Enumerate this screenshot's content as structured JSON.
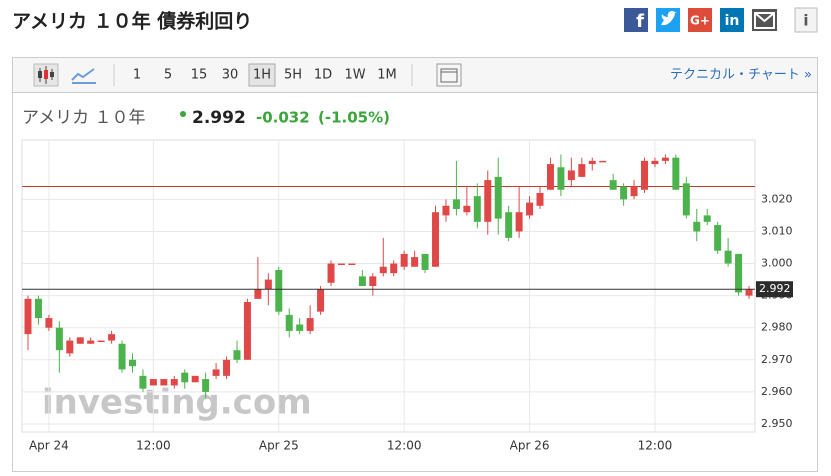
{
  "page": {
    "title": "アメリカ １０年 債券利回り",
    "share": [
      "f",
      "G+",
      "in",
      "i"
    ],
    "intervals": [
      "1",
      "5",
      "15",
      "30",
      "1H",
      "5H",
      "1D",
      "1W",
      "1M"
    ],
    "active_interval_index": 4,
    "technical_link": "テクニカル・チャート »",
    "instrument": "アメリカ １０年",
    "price": "2.992",
    "change": "-0.032",
    "change_percent": "(-1.05%)",
    "watermark": "investing.com"
  },
  "chart_data": {
    "type": "candlestick",
    "categories": [
      null,
      null,
      "Apr 24",
      null,
      null,
      null,
      null,
      null,
      null,
      null,
      null,
      null,
      "12:00",
      null,
      null,
      null,
      null,
      null,
      null,
      null,
      null,
      null,
      null,
      null,
      "Apr 25",
      null,
      null,
      null,
      null,
      null,
      null,
      null,
      null,
      null,
      null,
      null,
      "12:00",
      null,
      null,
      null,
      null,
      null,
      null,
      null,
      null,
      null,
      null,
      null,
      "Apr 26",
      null,
      null,
      null,
      null,
      null,
      null,
      null,
      null,
      null,
      null,
      null,
      "12:00",
      null,
      null,
      null,
      null,
      null,
      null,
      null,
      null,
      null
    ],
    "series": [
      {
        "open": [
          2.978,
          2.989,
          2.98,
          2.98,
          2.972,
          2.975,
          2.975,
          2.976,
          2.976,
          2.975,
          2.97,
          2.965,
          2.962,
          2.962,
          2.962,
          2.966,
          2.963,
          2.964,
          2.965,
          2.965,
          2.973,
          2.97,
          2.989,
          2.992,
          2.998,
          2.984,
          2.981,
          2.979,
          2.985,
          2.994,
          3.0,
          3.0,
          2.996,
          2.993,
          2.997,
          2.997,
          2.999,
          2.999,
          3.003,
          2.999,
          3.015,
          3.02,
          3.016,
          3.021,
          3.013,
          3.027,
          3.016,
          3.01,
          3.015,
          3.018,
          3.023,
          3.03,
          3.026,
          3.027,
          3.031,
          3.032,
          3.026,
          3.024,
          3.021,
          3.023,
          3.031,
          3.032,
          3.033,
          3.025,
          3.013,
          3.015,
          3.012,
          3.004,
          3.003,
          2.99
        ],
        "high": [
          2.99,
          2.99,
          2.984,
          2.982,
          2.977,
          2.977,
          2.977,
          2.976,
          2.979,
          2.976,
          2.972,
          2.967,
          2.964,
          2.964,
          2.965,
          2.967,
          2.965,
          2.966,
          2.969,
          2.971,
          2.976,
          2.989,
          3.002,
          2.997,
          2.999,
          2.986,
          2.983,
          2.987,
          2.993,
          3.001,
          3.0,
          3.0,
          2.998,
          2.997,
          3.008,
          3.001,
          3.004,
          3.004,
          3.003,
          3.018,
          3.02,
          3.032,
          3.024,
          3.025,
          3.029,
          3.033,
          3.018,
          3.024,
          3.021,
          3.024,
          3.033,
          3.034,
          3.033,
          3.033,
          3.033,
          3.032,
          3.028,
          3.025,
          3.026,
          3.033,
          3.033,
          3.034,
          3.034,
          3.027,
          3.017,
          3.017,
          3.013,
          3.008,
          3.003,
          2.993
        ],
        "low": [
          2.973,
          2.981,
          2.979,
          2.966,
          2.971,
          2.975,
          2.975,
          2.976,
          2.975,
          2.966,
          2.966,
          2.96,
          2.962,
          2.962,
          2.961,
          2.961,
          2.963,
          2.958,
          2.964,
          2.964,
          2.969,
          2.97,
          2.989,
          2.987,
          2.984,
          2.977,
          2.978,
          2.978,
          2.984,
          2.993,
          3.0,
          3.0,
          2.993,
          2.99,
          2.996,
          2.996,
          2.998,
          2.999,
          2.997,
          2.999,
          3.013,
          3.015,
          3.015,
          3.011,
          3.009,
          3.009,
          3.007,
          3.008,
          3.014,
          3.017,
          3.023,
          3.021,
          3.024,
          3.027,
          3.029,
          3.032,
          3.023,
          3.018,
          3.02,
          3.022,
          3.03,
          3.031,
          3.023,
          3.014,
          3.007,
          3.012,
          3.003,
          2.999,
          2.99,
          2.989
        ],
        "close": [
          2.989,
          2.983,
          2.983,
          2.973,
          2.976,
          2.977,
          2.976,
          2.976,
          2.978,
          2.967,
          2.968,
          2.961,
          2.964,
          2.964,
          2.964,
          2.963,
          2.965,
          2.96,
          2.967,
          2.97,
          2.97,
          2.988,
          2.992,
          2.995,
          2.985,
          2.979,
          2.979,
          2.983,
          2.992,
          3.0,
          3.0,
          3.0,
          2.993,
          2.996,
          2.999,
          3.0,
          3.003,
          3.002,
          2.998,
          3.016,
          3.018,
          3.017,
          3.018,
          3.013,
          3.026,
          3.014,
          3.008,
          3.016,
          3.019,
          3.022,
          3.031,
          3.023,
          3.029,
          3.031,
          3.032,
          3.032,
          3.023,
          3.02,
          3.024,
          3.032,
          3.032,
          3.033,
          3.023,
          3.015,
          3.01,
          3.013,
          3.004,
          3.0,
          2.991,
          2.992
        ]
      }
    ],
    "up_color": "#e04848",
    "down_color": "#4cb34c",
    "ylim": [
      2.9475,
      3.0385
    ],
    "yticks": [
      {
        "value": 2.95,
        "label": "2.950"
      },
      {
        "value": 2.96,
        "label": "2.960"
      },
      {
        "value": 2.97,
        "label": "2.970"
      },
      {
        "value": 2.98,
        "label": "2.980"
      },
      {
        "value": 2.99,
        "label": "2.990"
      },
      {
        "value": 3.0,
        "label": "3.000"
      },
      {
        "value": 3.01,
        "label": "3.010"
      },
      {
        "value": 3.02,
        "label": "3.020"
      }
    ],
    "previous_close": 3.024,
    "previous_close_color": "#c0392b",
    "last_price": 2.992,
    "grid": true
  }
}
